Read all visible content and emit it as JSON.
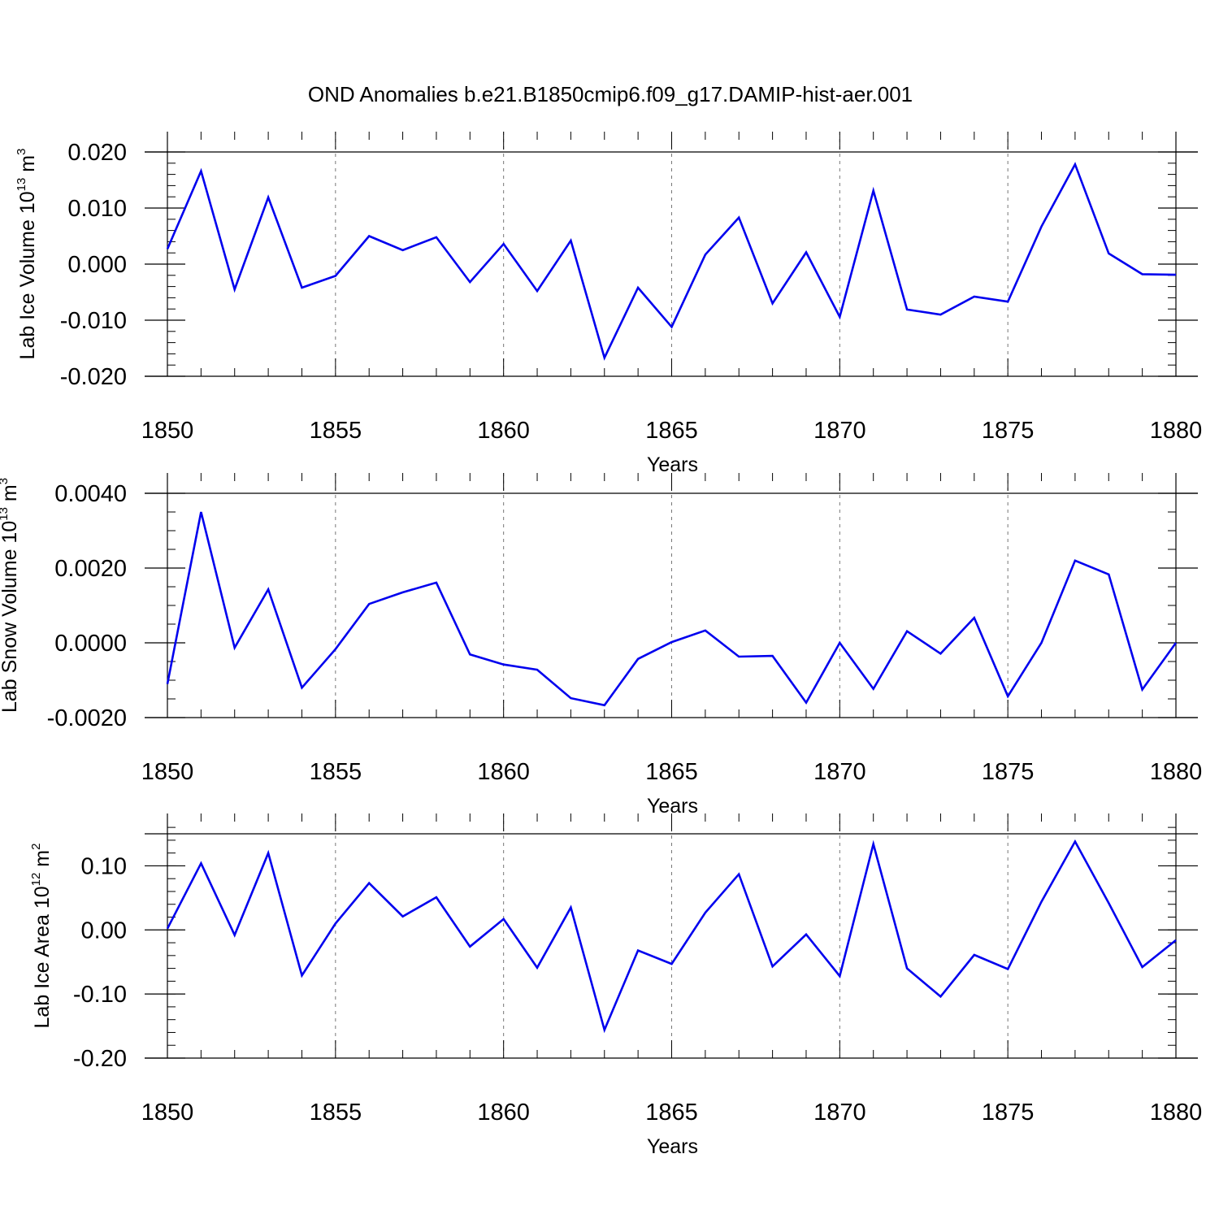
{
  "title": "OND Anomalies b.e21.B1850cmip6.f09_g17.DAMIP-hist-aer.001",
  "chart_data": [
    {
      "type": "line",
      "ylabel": {
        "main": "Lab Ice Volume 10",
        "sup": "13",
        "unit": " m",
        "unit_sup": "3"
      },
      "xlabel": "Years",
      "xlim": [
        1850,
        1880
      ],
      "ylim": [
        -0.02,
        0.02
      ],
      "x_ticks": [
        1850,
        1855,
        1860,
        1865,
        1870,
        1875,
        1880
      ],
      "x_tick_labels": [
        "1850",
        "1855",
        "1860",
        "1865",
        "1870",
        "1875",
        "1880"
      ],
      "y_ticks": [
        -0.02,
        -0.01,
        0.0,
        0.01,
        0.02
      ],
      "y_tick_labels": [
        "-0.020",
        "-0.010",
        "0.000",
        "0.010",
        "0.020"
      ],
      "y_minor_step": 0.002,
      "grid": "dashed vertical at major x ticks",
      "color": "#0000ee",
      "x": [
        1850,
        1851,
        1852,
        1853,
        1854,
        1855,
        1856,
        1857,
        1858,
        1859,
        1860,
        1861,
        1862,
        1863,
        1864,
        1865,
        1866,
        1867,
        1868,
        1869,
        1870,
        1871,
        1872,
        1873,
        1874,
        1875,
        1876,
        1877,
        1878,
        1879,
        1880
      ],
      "values": [
        0.0027,
        0.0166,
        -0.0045,
        0.0119,
        -0.0042,
        -0.0021,
        0.005,
        0.0025,
        0.0048,
        -0.0032,
        0.0036,
        -0.0048,
        0.0042,
        -0.0167,
        -0.0042,
        -0.0112,
        0.0017,
        0.0083,
        -0.007,
        0.0021,
        -0.0094,
        0.0131,
        -0.0081,
        -0.009,
        -0.0058,
        -0.0067,
        0.0067,
        0.0178,
        0.0019,
        -0.0018,
        -0.0019
      ]
    },
    {
      "type": "line",
      "ylabel": {
        "main": "Lab Snow Volume 10",
        "sup": "13",
        "unit": " m",
        "unit_sup": "3"
      },
      "xlabel": "Years",
      "xlim": [
        1850,
        1880
      ],
      "ylim": [
        -0.002,
        0.004
      ],
      "x_ticks": [
        1850,
        1855,
        1860,
        1865,
        1870,
        1875,
        1880
      ],
      "x_tick_labels": [
        "1850",
        "1855",
        "1860",
        "1865",
        "1870",
        "1875",
        "1880"
      ],
      "y_ticks": [
        -0.002,
        0.0,
        0.002,
        0.004
      ],
      "y_tick_labels": [
        "-0.0020",
        "0.0000",
        "0.0020",
        "0.0040"
      ],
      "y_minor_step": 0.0005,
      "grid": "dashed vertical at major x ticks",
      "color": "#0000ee",
      "x": [
        1850,
        1851,
        1852,
        1853,
        1854,
        1855,
        1856,
        1857,
        1858,
        1859,
        1860,
        1861,
        1862,
        1863,
        1864,
        1865,
        1866,
        1867,
        1868,
        1869,
        1870,
        1871,
        1872,
        1873,
        1874,
        1875,
        1876,
        1877,
        1878,
        1879,
        1880
      ],
      "values": [
        -0.0011,
        0.0035,
        -0.00013,
        0.00143,
        -0.0012,
        -0.00017,
        0.00104,
        0.00135,
        0.00161,
        -0.00031,
        -0.00058,
        -0.00072,
        -0.00148,
        -0.00167,
        -0.00043,
        2e-05,
        0.00033,
        -0.00037,
        -0.00035,
        -0.0016,
        0.0,
        -0.00123,
        0.00031,
        -0.00029,
        0.00067,
        -0.00143,
        0.0,
        0.0022,
        0.00183,
        -0.00125,
        0.0
      ]
    },
    {
      "type": "line",
      "ylabel": {
        "main": "Lab Ice Area 10",
        "sup": "12",
        "unit": " m",
        "unit_sup": "2"
      },
      "xlabel": "Years",
      "xlim": [
        1850,
        1880
      ],
      "ylim": [
        -0.2,
        0.15
      ],
      "x_ticks": [
        1850,
        1855,
        1860,
        1865,
        1870,
        1875,
        1880
      ],
      "x_tick_labels": [
        "1850",
        "1855",
        "1860",
        "1865",
        "1870",
        "1875",
        "1880"
      ],
      "y_ticks": [
        -0.2,
        -0.1,
        0.0,
        0.1
      ],
      "y_tick_labels": [
        "-0.20",
        "-0.10",
        "0.00",
        "0.10"
      ],
      "y_minor_step": 0.02,
      "grid": "dashed vertical at major x ticks",
      "color": "#0000ee",
      "x": [
        1850,
        1851,
        1852,
        1853,
        1854,
        1855,
        1856,
        1857,
        1858,
        1859,
        1860,
        1861,
        1862,
        1863,
        1864,
        1865,
        1866,
        1867,
        1868,
        1869,
        1870,
        1871,
        1872,
        1873,
        1874,
        1875,
        1876,
        1877,
        1878,
        1879,
        1880
      ],
      "values": [
        0.002,
        0.104,
        -0.008,
        0.12,
        -0.071,
        0.01,
        0.073,
        0.021,
        0.051,
        -0.026,
        0.017,
        -0.059,
        0.035,
        -0.156,
        -0.032,
        -0.053,
        0.027,
        0.087,
        -0.057,
        -0.007,
        -0.072,
        0.134,
        -0.06,
        -0.104,
        -0.039,
        -0.061,
        0.044,
        0.138,
        0.042,
        -0.058,
        -0.016
      ]
    }
  ]
}
